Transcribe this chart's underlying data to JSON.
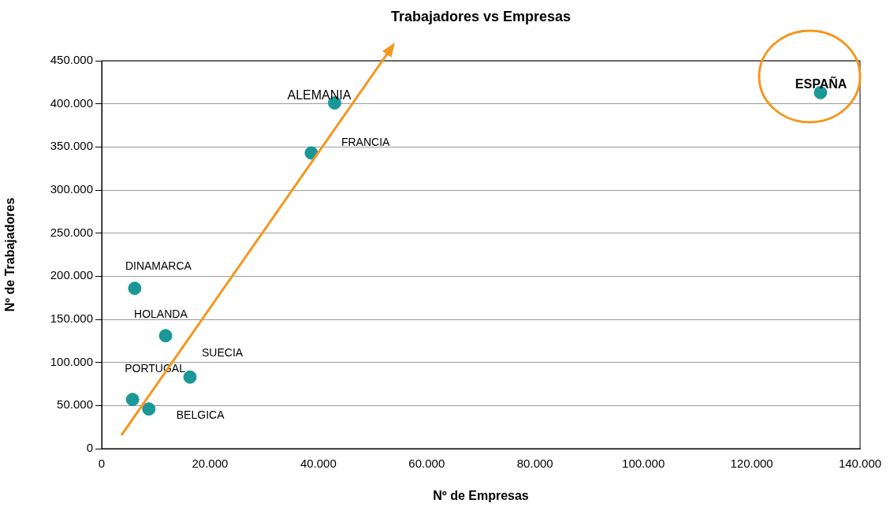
{
  "chart_data": {
    "type": "scatter",
    "title": "Trabajadores vs Empresas",
    "xlabel": "Nº de Empresas",
    "ylabel": "Nº de Trabajadores",
    "x": [
      132700,
      43000,
      38700,
      6100,
      11800,
      16300,
      5700,
      8700
    ],
    "values": [
      413000,
      401000,
      343000,
      186000,
      131000,
      83000,
      57000,
      46000
    ],
    "color": "#1a9898",
    "marker": "circle",
    "grid": "y",
    "legend": false,
    "xlim": [
      0,
      140000
    ],
    "xticks": [
      0,
      {
        "value": 20000,
        "label": "20.000"
      },
      {
        "value": 40000,
        "label": "40.000"
      },
      {
        "value": 60000,
        "label": "60.000"
      },
      {
        "value": 80000,
        "label": "80.000"
      },
      {
        "value": 100000,
        "label": "100.000"
      },
      {
        "value": 120000,
        "label": "120.000"
      },
      {
        "value": 140000,
        "label": "140.000"
      }
    ],
    "ylim": [
      0,
      450000
    ],
    "yticks": [
      0,
      {
        "value": 50000,
        "label": "50.000"
      },
      {
        "value": 100000,
        "label": "100.000"
      },
      {
        "value": 150000,
        "label": "150.000"
      },
      {
        "value": 200000,
        "label": "200.000"
      },
      {
        "value": 250000,
        "label": "250.000"
      },
      {
        "value": 300000,
        "label": "300.000"
      },
      {
        "value": 350000,
        "label": "350.000"
      },
      {
        "value": 400000,
        "label": "400.000"
      },
      {
        "value": 450000,
        "label": "450.000"
      }
    ],
    "annotations": [
      {
        "text": "ESPAÑA",
        "x": 132700,
        "y": 413000
      },
      {
        "text": "ALEMANIA",
        "x": 43000,
        "y": 401000
      },
      {
        "text": "FRANCIA",
        "x": 38700,
        "y": 343000
      },
      {
        "text": "DINAMARCA",
        "x": 6100,
        "y": 186000
      },
      {
        "text": "HOLANDA",
        "x": 11800,
        "y": 131000
      },
      {
        "text": "SUECIA",
        "x": 16300,
        "y": 83000
      },
      {
        "text": "PORTUGAL",
        "x": 5700,
        "y": 57000
      },
      {
        "text": "BELGICA",
        "x": 8700,
        "y": 46000
      }
    ]
  }
}
